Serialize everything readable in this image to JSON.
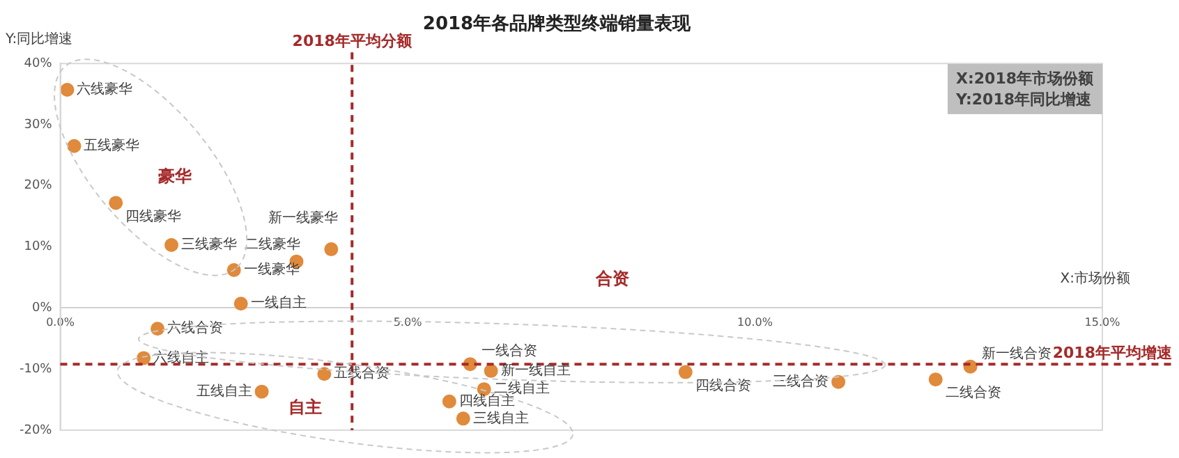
{
  "chart_data": {
    "type": "scatter",
    "title": "2018年各品牌类型终端销量表现",
    "xlabel": "X:市场份额",
    "ylabel": "Y:同比增速",
    "xlim": [
      0,
      15
    ],
    "ylim": [
      -20,
      40
    ],
    "xticks": [
      {
        "value": 0,
        "label": "0.0%"
      },
      {
        "value": 5,
        "label": "5.0%"
      },
      {
        "value": 10,
        "label": "10.0%"
      },
      {
        "value": 15,
        "label": "15.0%"
      }
    ],
    "yticks": [
      {
        "value": -20,
        "label": "-20%"
      },
      {
        "value": -10,
        "label": "-10%"
      },
      {
        "value": 0,
        "label": "0%"
      },
      {
        "value": 10,
        "label": "10%"
      },
      {
        "value": 20,
        "label": "20%"
      },
      {
        "value": 30,
        "label": "30%"
      },
      {
        "value": 40,
        "label": "40%"
      }
    ],
    "grid": false,
    "legend": false,
    "marker": "circle",
    "series": [
      {
        "name": "六线豪华",
        "color": "#e08a3c",
        "x": [
          0.1
        ],
        "values": [
          35.7
        ]
      },
      {
        "name": "五线豪华",
        "color": "#e08a3c",
        "x": [
          0.2
        ],
        "values": [
          26.5
        ]
      },
      {
        "name": "四线豪华",
        "color": "#e08a3c",
        "x": [
          0.8
        ],
        "values": [
          17.2
        ]
      },
      {
        "name": "三线豪华",
        "color": "#e08a3c",
        "x": [
          1.6
        ],
        "values": [
          10.3
        ]
      },
      {
        "name": "一线豪华",
        "color": "#e08a3c",
        "x": [
          2.5
        ],
        "values": [
          6.2
        ]
      },
      {
        "name": "二线豪华",
        "color": "#e08a3c",
        "x": [
          3.4
        ],
        "values": [
          7.6
        ]
      },
      {
        "name": "新一线豪华",
        "color": "#e08a3c",
        "x": [
          3.9
        ],
        "values": [
          9.6
        ]
      },
      {
        "name": "一线自主",
        "color": "#e08a3c",
        "x": [
          2.6
        ],
        "values": [
          0.7
        ]
      },
      {
        "name": "六线合资",
        "color": "#e08a3c",
        "x": [
          1.4
        ],
        "values": [
          -3.4
        ]
      },
      {
        "name": "六线自主",
        "color": "#e08a3c",
        "x": [
          1.2
        ],
        "values": [
          -8.2
        ]
      },
      {
        "name": "五线自主",
        "color": "#e08a3c",
        "x": [
          2.9
        ],
        "values": [
          -13.7
        ]
      },
      {
        "name": "五线合资",
        "color": "#e08a3c",
        "x": [
          3.8
        ],
        "values": [
          -10.8
        ]
      },
      {
        "name": "一线合资",
        "color": "#e08a3c",
        "x": [
          5.9
        ],
        "values": [
          -9.2
        ]
      },
      {
        "name": "新一线自主",
        "color": "#e08a3c",
        "x": [
          6.2
        ],
        "values": [
          -10.3
        ]
      },
      {
        "name": "二线自主",
        "color": "#e08a3c",
        "x": [
          6.1
        ],
        "values": [
          -13.3
        ]
      },
      {
        "name": "四线自主",
        "color": "#e08a3c",
        "x": [
          5.6
        ],
        "values": [
          -15.3
        ]
      },
      {
        "name": "三线自主",
        "color": "#e08a3c",
        "x": [
          5.8
        ],
        "values": [
          -18.1
        ]
      },
      {
        "name": "四线合资",
        "color": "#e08a3c",
        "x": [
          9.0
        ],
        "values": [
          -10.5
        ]
      },
      {
        "name": "三线合资",
        "color": "#e08a3c",
        "x": [
          11.2
        ],
        "values": [
          -12.1
        ]
      },
      {
        "name": "二线合资",
        "color": "#e08a3c",
        "x": [
          12.6
        ],
        "values": [
          -11.7
        ]
      },
      {
        "name": "新一线合资",
        "color": "#e08a3c",
        "x": [
          13.1
        ],
        "values": [
          -9.6
        ]
      }
    ],
    "ref_lines": [
      {
        "axis": "x",
        "value": 4.2,
        "label": "2018年平均分额",
        "color": "#a52a2a",
        "line_style": "dashed"
      },
      {
        "axis": "y",
        "value": -9.2,
        "label": "2018年平均增速",
        "color": "#a52a2a",
        "line_style": "dashed"
      }
    ],
    "annotations": [
      "豪华",
      "合资",
      "自主",
      "X:2018年市场份额\nY:2018年同比增速"
    ]
  }
}
